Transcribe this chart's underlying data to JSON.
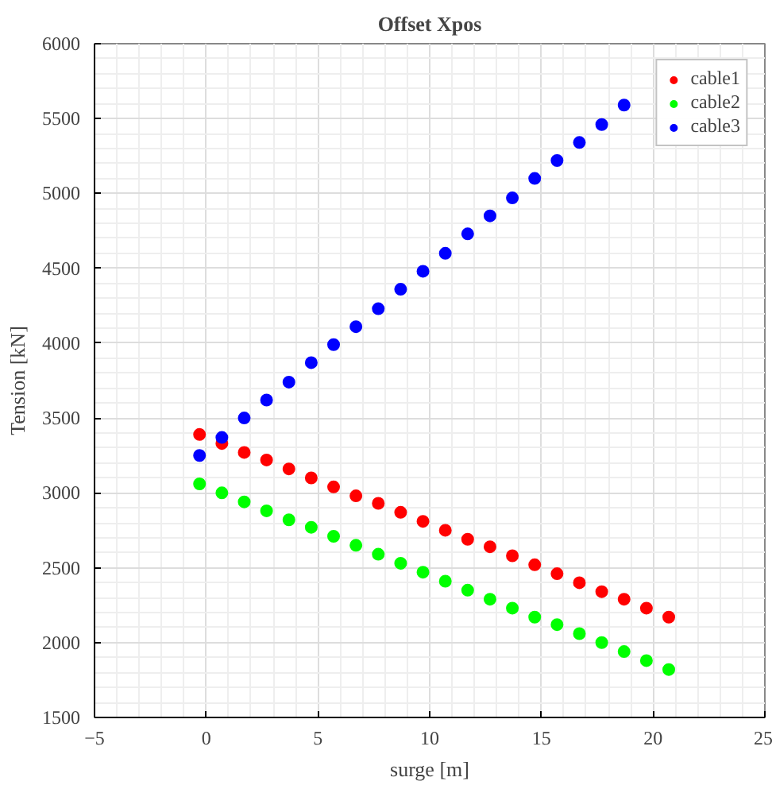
{
  "chart_data": {
    "type": "scatter",
    "title": "Offset Xpos",
    "xlabel": "surge [m]",
    "ylabel": "Tension [kN]",
    "x": [
      -0.3,
      0.7,
      1.7,
      2.7,
      3.7,
      4.7,
      5.7,
      6.7,
      7.7,
      8.7,
      9.7,
      10.7,
      11.7,
      12.7,
      13.7,
      14.7,
      15.7,
      16.7,
      17.7,
      18.7,
      19.7,
      20.7
    ],
    "series": [
      {
        "name": "cable1",
        "color": "#ff0000",
        "values": [
          3390,
          3330,
          3270,
          3220,
          3160,
          3100,
          3040,
          2980,
          2930,
          2870,
          2810,
          2750,
          2690,
          2640,
          2580,
          2520,
          2460,
          2400,
          2340,
          2290,
          2230,
          2170
        ]
      },
      {
        "name": "cable2",
        "color": "#00ff00",
        "values": [
          3060,
          3000,
          2940,
          2880,
          2820,
          2770,
          2710,
          2650,
          2590,
          2530,
          2470,
          2410,
          2350,
          2290,
          2230,
          2170,
          2120,
          2060,
          2000,
          1940,
          1880,
          1820
        ]
      },
      {
        "name": "cable3",
        "color": "#0000ff",
        "values": [
          3250,
          3370,
          3500,
          3620,
          3740,
          3870,
          3990,
          4110,
          4230,
          4360,
          4480,
          4600,
          4730,
          4850,
          4970,
          5100,
          5220,
          5340,
          5460,
          5590,
          null,
          null
        ]
      }
    ],
    "xlim": [
      -5,
      25
    ],
    "xticks": [
      -5,
      0,
      5,
      10,
      15,
      20,
      25
    ],
    "ylim": [
      1500,
      6000
    ],
    "yticks": [
      1500,
      2000,
      2500,
      3000,
      3500,
      4000,
      4500,
      5000,
      5500,
      6000
    ],
    "grid": true,
    "legend": "top right",
    "marker": "circle"
  }
}
